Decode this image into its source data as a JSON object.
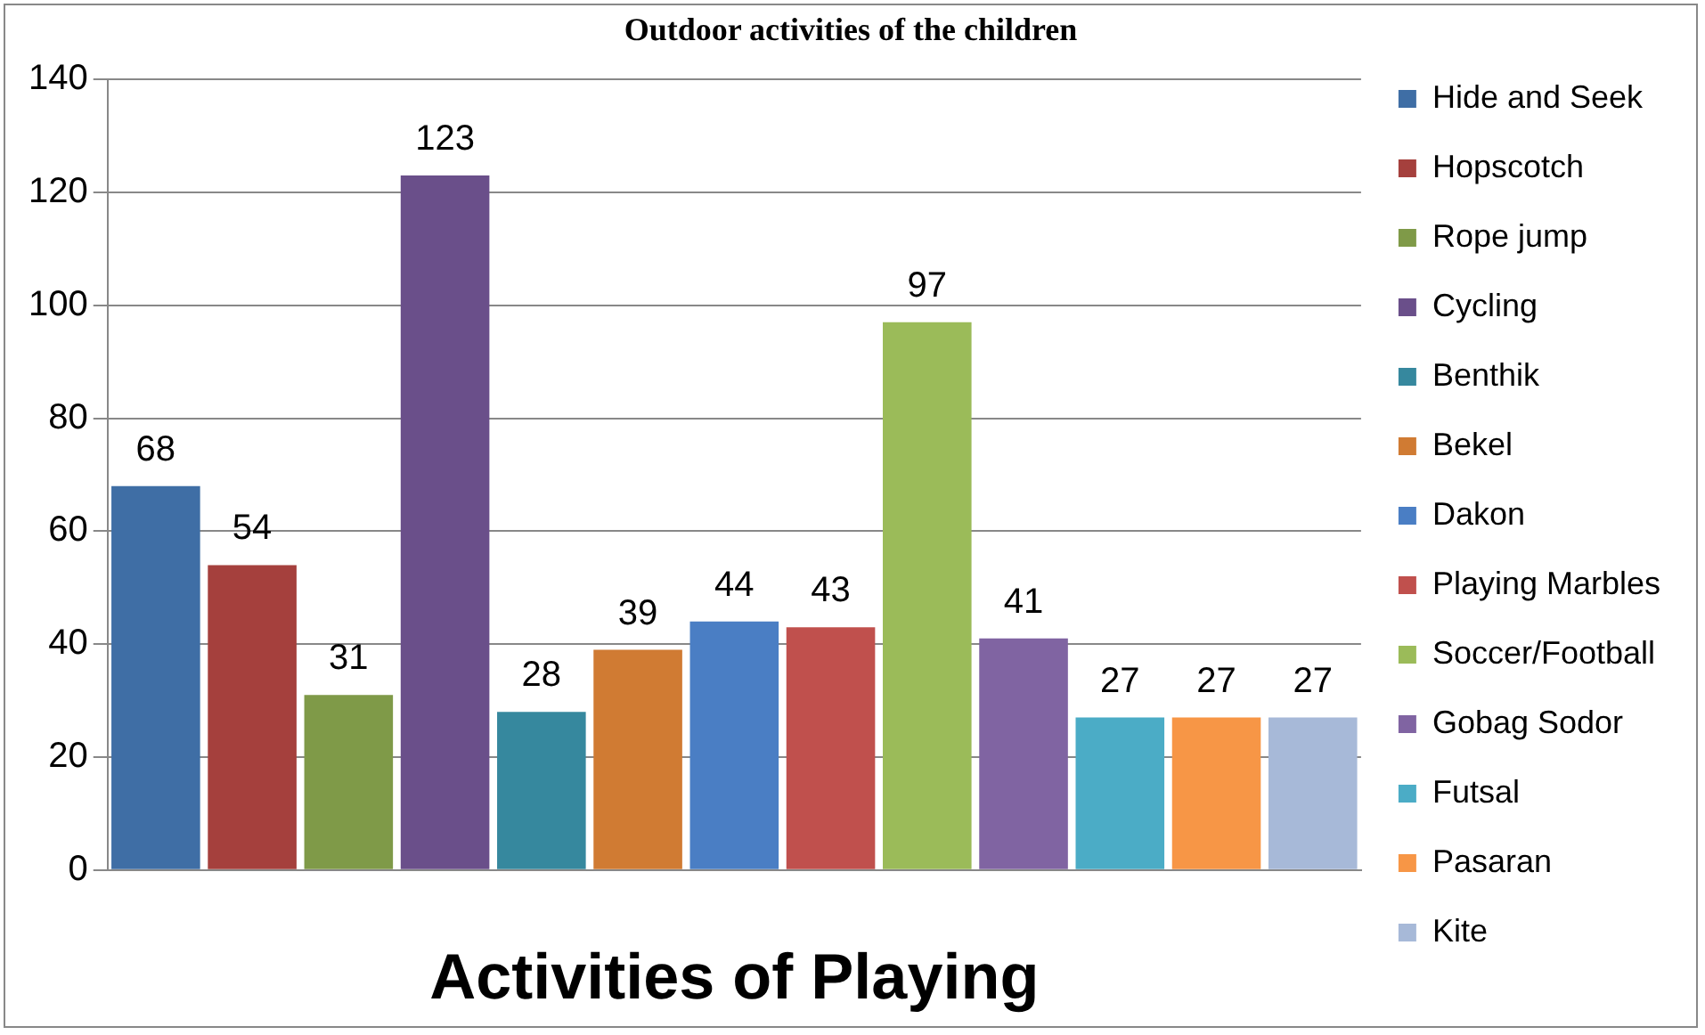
{
  "chart_data": {
    "type": "bar",
    "title": "Outdoor activities of the children",
    "xlabel": "Activities of Playing",
    "categories": [
      null
    ],
    "series": [
      {
        "name": "Hide and Seek",
        "color": "#3f6ea5",
        "values": [
          68
        ]
      },
      {
        "name": "Hopscotch",
        "color": "#a5403d",
        "values": [
          54
        ]
      },
      {
        "name": "Rope jump",
        "color": "#7f9a48",
        "values": [
          31
        ]
      },
      {
        "name": "Cycling",
        "color": "#6a4f8a",
        "values": [
          123
        ]
      },
      {
        "name": "Benthik",
        "color": "#36889e",
        "values": [
          28
        ]
      },
      {
        "name": "Bekel",
        "color": "#d07b33",
        "values": [
          39
        ]
      },
      {
        "name": "Dakon",
        "color": "#4a7ec4",
        "values": [
          44
        ]
      },
      {
        "name": "Playing Marbles",
        "color": "#c0504d",
        "values": [
          43
        ]
      },
      {
        "name": "Soccer/Football",
        "color": "#9bbb59",
        "values": [
          97
        ]
      },
      {
        "name": "Gobag Sodor",
        "color": "#8064a2",
        "values": [
          41
        ]
      },
      {
        "name": "Futsal",
        "color": "#4bacc6",
        "values": [
          27
        ]
      },
      {
        "name": "Pasaran",
        "color": "#f79646",
        "values": [
          27
        ]
      },
      {
        "name": "Kite",
        "color": "#a7b9d8",
        "values": [
          27
        ]
      }
    ],
    "ylim": [
      0,
      140
    ],
    "yticks": [
      0,
      20,
      40,
      60,
      80,
      100,
      120,
      140
    ],
    "grid": "y",
    "legend": "right",
    "data_labels": true
  }
}
